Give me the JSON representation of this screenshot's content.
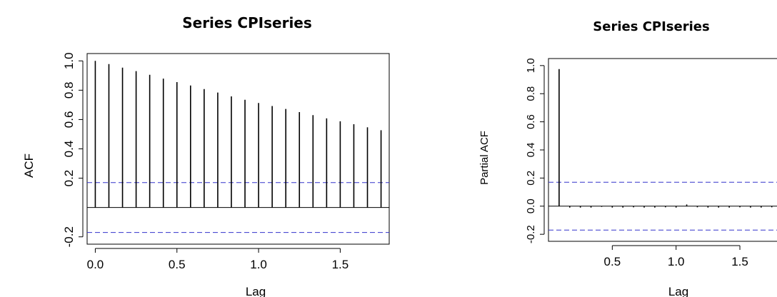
{
  "chart_data": [
    {
      "type": "bar",
      "subtype": "acf-correlogram",
      "title": "Series  CPIseries",
      "xlabel": "Lag",
      "ylabel": "ACF",
      "xlim": [
        -0.05,
        1.8
      ],
      "ylim": [
        -0.25,
        1.05
      ],
      "xticks": [
        0.0,
        0.5,
        1.0,
        1.5
      ],
      "xtick_labels": [
        "0.0",
        "0.5",
        "1.0",
        "1.5"
      ],
      "yticks": [
        -0.2,
        0.2,
        0.4,
        0.6,
        0.8,
        1.0
      ],
      "ytick_labels": [
        "-0.2",
        "0.2",
        "0.4",
        "0.6",
        "0.8",
        "1.0"
      ],
      "x": [
        0.0,
        0.0833,
        0.1667,
        0.25,
        0.3333,
        0.4167,
        0.5,
        0.5833,
        0.6667,
        0.75,
        0.8333,
        0.9167,
        1.0,
        1.0833,
        1.1667,
        1.25,
        1.3333,
        1.4167,
        1.5,
        1.5833,
        1.6667,
        1.75
      ],
      "values": [
        1.0,
        0.978,
        0.954,
        0.93,
        0.905,
        0.879,
        0.855,
        0.832,
        0.808,
        0.784,
        0.758,
        0.735,
        0.713,
        0.692,
        0.672,
        0.651,
        0.63,
        0.608,
        0.588,
        0.568,
        0.547,
        0.527
      ],
      "ci": 0.17,
      "zero_line": true,
      "bar_color": "#000000",
      "ci_color": "#3333cc"
    },
    {
      "type": "bar",
      "subtype": "pacf-correlogram",
      "title": "Series  CPIseries",
      "xlabel": "Lag",
      "ylabel": "Partial ACF",
      "xlim": [
        0.0,
        1.83
      ],
      "ylim": [
        -0.25,
        1.05
      ],
      "xticks": [
        0.5,
        1.0,
        1.5
      ],
      "xtick_labels": [
        "0.5",
        "1.0",
        "1.5"
      ],
      "yticks": [
        -0.2,
        0.0,
        0.2,
        0.4,
        0.6,
        0.8,
        1.0
      ],
      "ytick_labels": [
        "-0.2",
        "0.0",
        "0.2",
        "0.4",
        "0.6",
        "0.8",
        "1.0"
      ],
      "x": [
        0.0833,
        0.1667,
        0.25,
        0.3333,
        0.4167,
        0.5,
        0.5833,
        0.6667,
        0.75,
        0.8333,
        0.9167,
        1.0,
        1.0833,
        1.1667,
        1.25,
        1.3333,
        1.4167,
        1.5,
        1.5833,
        1.6667,
        1.75
      ],
      "values": [
        0.975,
        -0.01,
        -0.01,
        -0.01,
        -0.005,
        -0.01,
        -0.01,
        -0.008,
        -0.01,
        -0.01,
        -0.008,
        -0.01,
        0.012,
        -0.008,
        -0.01,
        -0.01,
        -0.01,
        -0.008,
        -0.01,
        -0.01,
        -0.008
      ],
      "ci": 0.17,
      "zero_line": true,
      "bar_color": "#000000",
      "ci_color": "#3333cc"
    }
  ]
}
